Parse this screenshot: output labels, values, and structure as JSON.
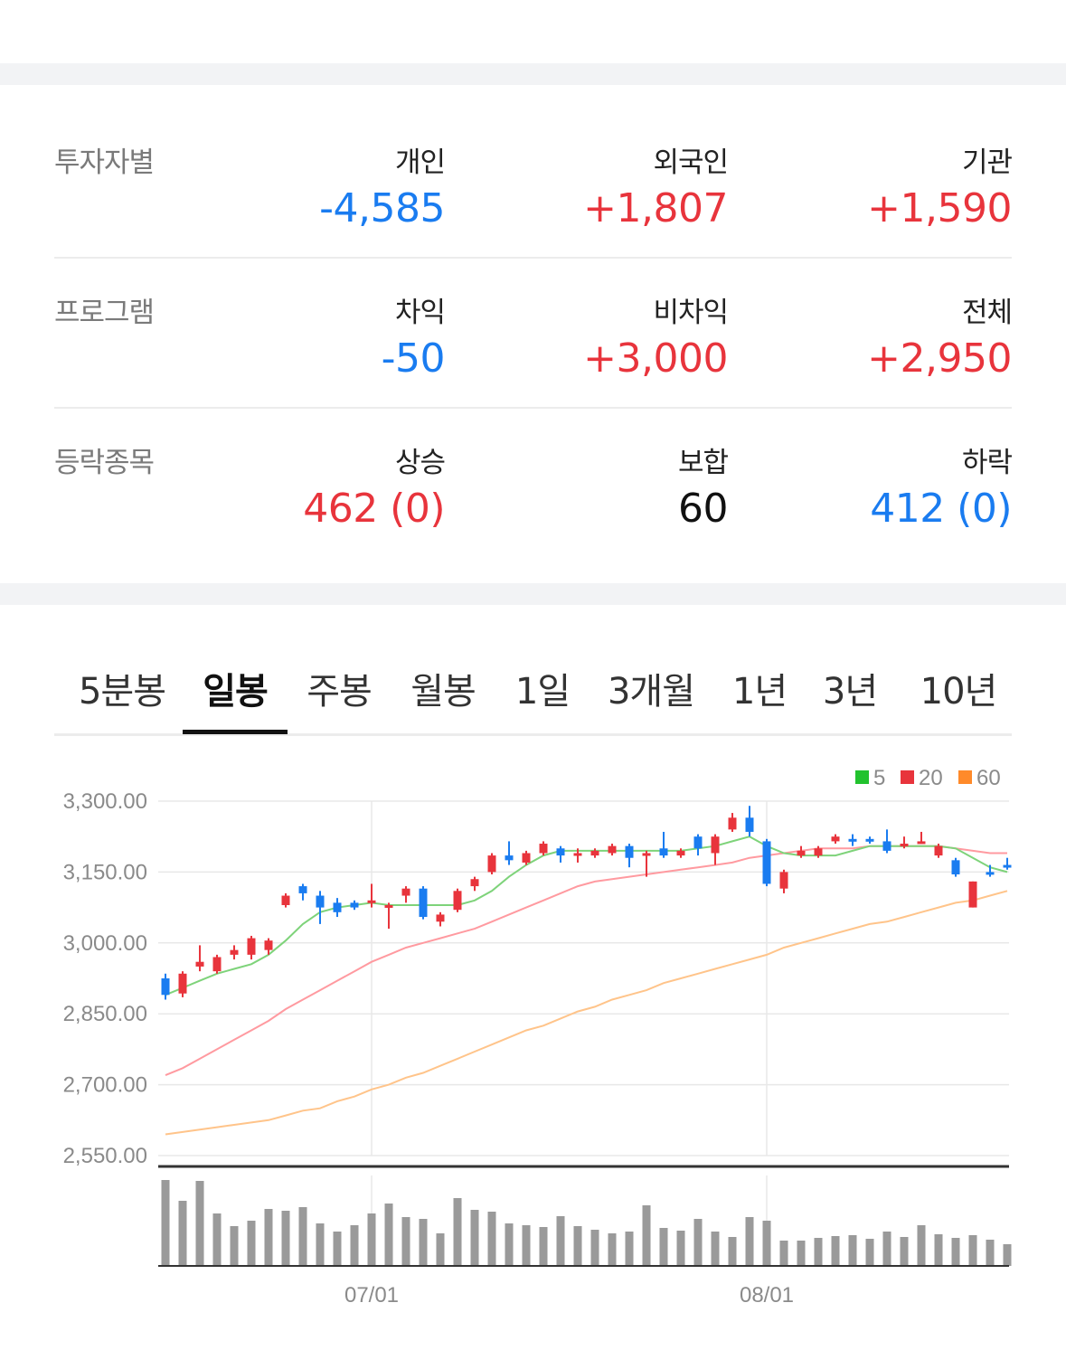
{
  "investors": {
    "label": "투자자별",
    "cols": [
      {
        "label": "개인",
        "value": "-4,585",
        "tone": "down"
      },
      {
        "label": "외국인",
        "value": "+1,807",
        "tone": "up"
      },
      {
        "label": "기관",
        "value": "+1,590",
        "tone": "up"
      }
    ]
  },
  "program": {
    "label": "프로그램",
    "cols": [
      {
        "label": "차익",
        "value": "-50",
        "tone": "down"
      },
      {
        "label": "비차익",
        "value": "+3,000",
        "tone": "up"
      },
      {
        "label": "전체",
        "value": "+2,950",
        "tone": "up"
      }
    ]
  },
  "advance_decline": {
    "label": "등락종목",
    "cols": [
      {
        "label": "상승",
        "value": "462 (0)",
        "tone": "up"
      },
      {
        "label": "보합",
        "value": "60",
        "tone": "flat"
      },
      {
        "label": "하락",
        "value": "412 (0)",
        "tone": "down"
      }
    ]
  },
  "tabs": [
    {
      "label": "5분봉"
    },
    {
      "label": "일봉",
      "active": true
    },
    {
      "label": "주봉"
    },
    {
      "label": "월봉"
    },
    {
      "label": "1일"
    },
    {
      "label": "3개월"
    },
    {
      "label": "1년"
    },
    {
      "label": "3년"
    },
    {
      "label": "10년"
    }
  ],
  "colors": {
    "up": "#e8343c",
    "down": "#1a7cf0",
    "ma5": "#7ed37a",
    "ma20": "#ff9aa0",
    "ma60": "#ffc48a",
    "volume": "#9a9a9a"
  },
  "chart_data": {
    "type": "candlestick",
    "y_ticks": [
      "3,300.00",
      "3,150.00",
      "3,000.00",
      "2,850.00",
      "2,700.00",
      "2,550.00"
    ],
    "ylim": [
      2550,
      3300
    ],
    "x_ticks": [
      {
        "label": "07/01",
        "index": 12
      },
      {
        "label": "08/01",
        "index": 35
      }
    ],
    "legend": [
      {
        "label": "5",
        "color": "#22c22e"
      },
      {
        "label": "20",
        "color": "#e8343c"
      },
      {
        "label": "60",
        "color": "#ff8a2a"
      }
    ],
    "candles": [
      [
        2925,
        2890,
        2935,
        2880
      ],
      [
        2893,
        2935,
        2940,
        2885
      ],
      [
        2950,
        2960,
        2995,
        2940
      ],
      [
        2940,
        2970,
        2975,
        2935
      ],
      [
        2975,
        2985,
        2995,
        2965
      ],
      [
        2975,
        3010,
        3015,
        2965
      ],
      [
        2985,
        3005,
        3010,
        2975
      ],
      [
        3080,
        3100,
        3105,
        3075
      ],
      [
        3120,
        3105,
        3125,
        3090
      ],
      [
        3100,
        3075,
        3110,
        3040
      ],
      [
        3085,
        3065,
        3095,
        3055
      ],
      [
        3085,
        3075,
        3090,
        3070
      ],
      [
        3085,
        3090,
        3125,
        3075
      ],
      [
        3080,
        3080,
        3085,
        3030
      ],
      [
        3100,
        3115,
        3120,
        3085
      ],
      [
        3115,
        3055,
        3120,
        3050
      ],
      [
        3045,
        3060,
        3065,
        3035
      ],
      [
        3070,
        3110,
        3115,
        3065
      ],
      [
        3120,
        3135,
        3140,
        3110
      ],
      [
        3150,
        3185,
        3190,
        3145
      ],
      [
        3185,
        3175,
        3215,
        3165
      ],
      [
        3170,
        3190,
        3195,
        3165
      ],
      [
        3190,
        3210,
        3215,
        3185
      ],
      [
        3200,
        3185,
        3205,
        3170
      ],
      [
        3190,
        3190,
        3200,
        3170
      ],
      [
        3185,
        3195,
        3200,
        3180
      ],
      [
        3190,
        3205,
        3210,
        3185
      ],
      [
        3205,
        3180,
        3210,
        3160
      ],
      [
        3190,
        3190,
        3195,
        3140
      ],
      [
        3200,
        3185,
        3235,
        3180
      ],
      [
        3185,
        3195,
        3200,
        3180
      ],
      [
        3225,
        3200,
        3230,
        3185
      ],
      [
        3190,
        3225,
        3230,
        3165
      ],
      [
        3240,
        3265,
        3275,
        3235
      ],
      [
        3265,
        3235,
        3290,
        3225
      ],
      [
        3215,
        3125,
        3220,
        3120
      ],
      [
        3115,
        3150,
        3155,
        3105
      ],
      [
        3185,
        3195,
        3205,
        3180
      ],
      [
        3185,
        3200,
        3205,
        3180
      ],
      [
        3215,
        3225,
        3230,
        3210
      ],
      [
        3220,
        3215,
        3230,
        3205
      ],
      [
        3220,
        3215,
        3225,
        3210
      ],
      [
        3215,
        3195,
        3240,
        3190
      ],
      [
        3205,
        3210,
        3225,
        3200
      ],
      [
        3215,
        3215,
        3235,
        3210
      ],
      [
        3185,
        3205,
        3210,
        3180
      ],
      [
        3175,
        3145,
        3180,
        3140
      ],
      [
        3075,
        3130,
        3130,
        3075
      ],
      [
        3150,
        3145,
        3165,
        3140
      ],
      [
        3165,
        3160,
        3180,
        3155
      ]
    ],
    "ma5": [
      2890,
      2905,
      2920,
      2935,
      2945,
      2955,
      2975,
      3005,
      3040,
      3065,
      3075,
      3080,
      3085,
      3080,
      3080,
      3080,
      3080,
      3080,
      3090,
      3110,
      3140,
      3165,
      3185,
      3195,
      3195,
      3195,
      3195,
      3195,
      3195,
      3195,
      3195,
      3200,
      3205,
      3215,
      3225,
      3205,
      3190,
      3185,
      3185,
      3185,
      3195,
      3205,
      3205,
      3205,
      3205,
      3205,
      3200,
      3180,
      3160,
      3150
    ],
    "ma20": [
      2720,
      2735,
      2755,
      2775,
      2795,
      2815,
      2835,
      2860,
      2880,
      2900,
      2920,
      2940,
      2960,
      2975,
      2990,
      3000,
      3010,
      3020,
      3030,
      3045,
      3060,
      3075,
      3090,
      3105,
      3120,
      3130,
      3135,
      3140,
      3145,
      3150,
      3155,
      3160,
      3165,
      3170,
      3180,
      3185,
      3190,
      3195,
      3200,
      3200,
      3200,
      3205,
      3205,
      3205,
      3205,
      3205,
      3200,
      3195,
      3190,
      3190
    ],
    "ma60": [
      2595,
      2600,
      2605,
      2610,
      2615,
      2620,
      2625,
      2635,
      2645,
      2650,
      2665,
      2675,
      2690,
      2700,
      2715,
      2725,
      2740,
      2755,
      2770,
      2785,
      2800,
      2815,
      2825,
      2840,
      2855,
      2865,
      2880,
      2890,
      2900,
      2915,
      2925,
      2935,
      2945,
      2955,
      2965,
      2975,
      2990,
      3000,
      3010,
      3020,
      3030,
      3040,
      3045,
      3055,
      3065,
      3075,
      3085,
      3090,
      3100,
      3110
    ],
    "volume": [
      95,
      72,
      94,
      58,
      44,
      50,
      63,
      61,
      65,
      47,
      38,
      45,
      58,
      69,
      54,
      52,
      36,
      75,
      62,
      60,
      47,
      45,
      43,
      55,
      44,
      40,
      36,
      38,
      67,
      42,
      39,
      52,
      38,
      32,
      54,
      50,
      28,
      28,
      31,
      33,
      34,
      30,
      38,
      32,
      45,
      35,
      31,
      34,
      29,
      24
    ]
  }
}
